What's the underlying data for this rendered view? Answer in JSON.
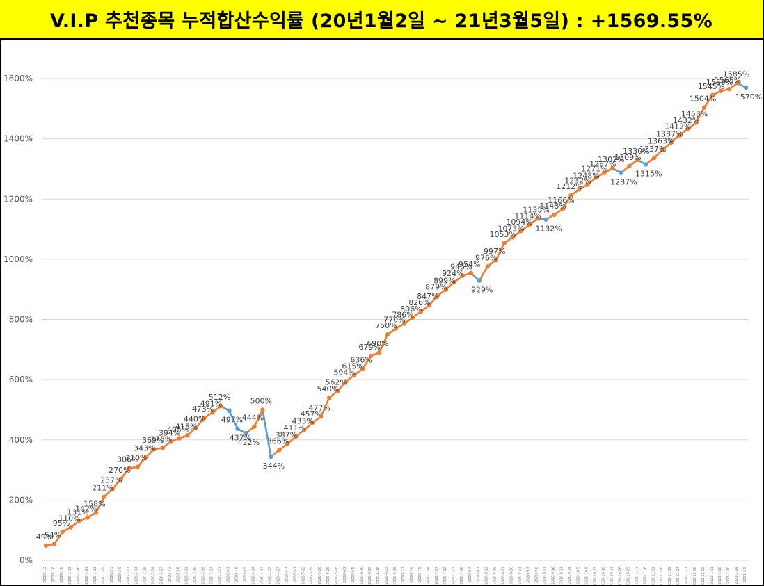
{
  "title": "V.I.P 추천종목 누적합산수익률 (20년1월2일 ~ 21년3월5일) : +1569.55%",
  "colors": {
    "up": "#ed7d31",
    "down": "#5b9bd5",
    "grid": "#d9d9d9",
    "banner": "#ffff00"
  },
  "chart_data": {
    "type": "line",
    "title": "",
    "xlabel": "",
    "ylabel": "",
    "ylim": [
      0,
      1700
    ],
    "yticks": [
      "0%",
      "200%",
      "400%",
      "600%",
      "800%",
      "1000%",
      "1200%",
      "1400%",
      "1600%"
    ],
    "grid": true,
    "series": [
      {
        "values": [
          49,
          54,
          95,
          110,
          131,
          142,
          158,
          211,
          237,
          270,
          306,
          310,
          343,
          369,
          373,
          394,
          405,
          415,
          440,
          473,
          491,
          512,
          497,
          437,
          422,
          444,
          500,
          344,
          366,
          387,
          411,
          433,
          457,
          477,
          540,
          562,
          594,
          615,
          636,
          679,
          690,
          750,
          770,
          786,
          806,
          826,
          847,
          879,
          899,
          924,
          945,
          954,
          929,
          976,
          997,
          1053,
          1073,
          1094,
          1114,
          1135,
          1132,
          1148,
          1166,
          1212,
          1232,
          1248,
          1271,
          1287,
          1302,
          1287,
          1309,
          1330,
          1315,
          1337,
          1363,
          1387,
          1412,
          1432,
          1453,
          1504,
          1545,
          1559,
          1565,
          1585,
          1570
        ],
        "labels": [
          "49%",
          "54%",
          "95%",
          "110%",
          "131%",
          "142%",
          "158%",
          "211%",
          "237%",
          "270%",
          "306%",
          "310%",
          "343%",
          "369%",
          "373%",
          "394%",
          "405%",
          "415%",
          "440%",
          "473%",
          "491%",
          "512%",
          "497%",
          "437%",
          "422%",
          "444%",
          "500%",
          "344%",
          "366%",
          "387%",
          "411%",
          "433%",
          "457%",
          "477%",
          "540%",
          "562%",
          "594%",
          "615%",
          "636%",
          "679%",
          "690%",
          "750%",
          "770%",
          "786%",
          "806%",
          "826%",
          "847%",
          "879%",
          "899%",
          "924%",
          "945%",
          "954%",
          "929%",
          "976%",
          "997%",
          "1053%",
          "1073%",
          "1094%",
          "1114%",
          "1135%",
          "1132%",
          "1148%",
          "1166%",
          "1212%",
          "1232%",
          "1248%",
          "1271%",
          "1287%",
          "1302%",
          "1287%",
          "1309%",
          "1330%",
          "1315%",
          "1337%",
          "1363%",
          "1387%",
          "1412%",
          "1432%",
          "1453%",
          "1504%",
          "1545%",
          "1559%",
          "1565%",
          "1585%",
          "1570%"
        ]
      }
    ],
    "categories": [
      "2020-1-2",
      "2020-1-6",
      "2020-1-8",
      "2020-1-13",
      "2020-1-16",
      "2020-1-21",
      "2020-1-23",
      "2020-1-29",
      "2020-2-3",
      "2020-2-6",
      "2020-2-11",
      "2020-2-14",
      "2020-2-19",
      "2020-2-24",
      "2020-2-27",
      "2020-3-3",
      "2020-3-6",
      "2020-3-11",
      "2020-3-16",
      "2020-3-19",
      "2020-3-24",
      "2020-3-27",
      "2020-4-1",
      "2020-4-6",
      "2020-4-9",
      "2020-4-14",
      "2020-4-17",
      "2020-4-22",
      "2020-4-27",
      "2020-5-4",
      "2020-5-7",
      "2020-5-12",
      "2020-5-15",
      "2020-5-20",
      "2020-5-25",
      "2020-5-28",
      "2020-6-2",
      "2020-6-5",
      "2020-6-10",
      "2020-6-15",
      "2020-6-18",
      "2020-6-23",
      "2020-6-26",
      "2020-7-1",
      "2020-7-6",
      "2020-7-9",
      "2020-7-14",
      "2020-7-17",
      "2020-7-22",
      "2020-7-27",
      "2020-7-30",
      "2020-8-4",
      "2020-8-7",
      "2020-8-12",
      "2020-8-18",
      "2020-8-21",
      "2020-8-26",
      "2020-8-31",
      "2020-9-3",
      "2020-9-8",
      "2020-9-11",
      "2020-9-16",
      "2020-9-21",
      "2020-9-24",
      "2020-10-5",
      "2020-10-8",
      "2020-10-13",
      "2020-10-16",
      "2020-10-21",
      "2020-10-26",
      "2020-10-29",
      "2020-11-3",
      "2020-11-6",
      "2020-11-11",
      "2020-11-16",
      "2020-11-19",
      "2020-11-24",
      "2020-12-1",
      "2020-12-10",
      "2020-12-22",
      "2021-1-11",
      "2021-1-28",
      "2021-2-10",
      "2021-2-24",
      "2021-3-5"
    ]
  }
}
